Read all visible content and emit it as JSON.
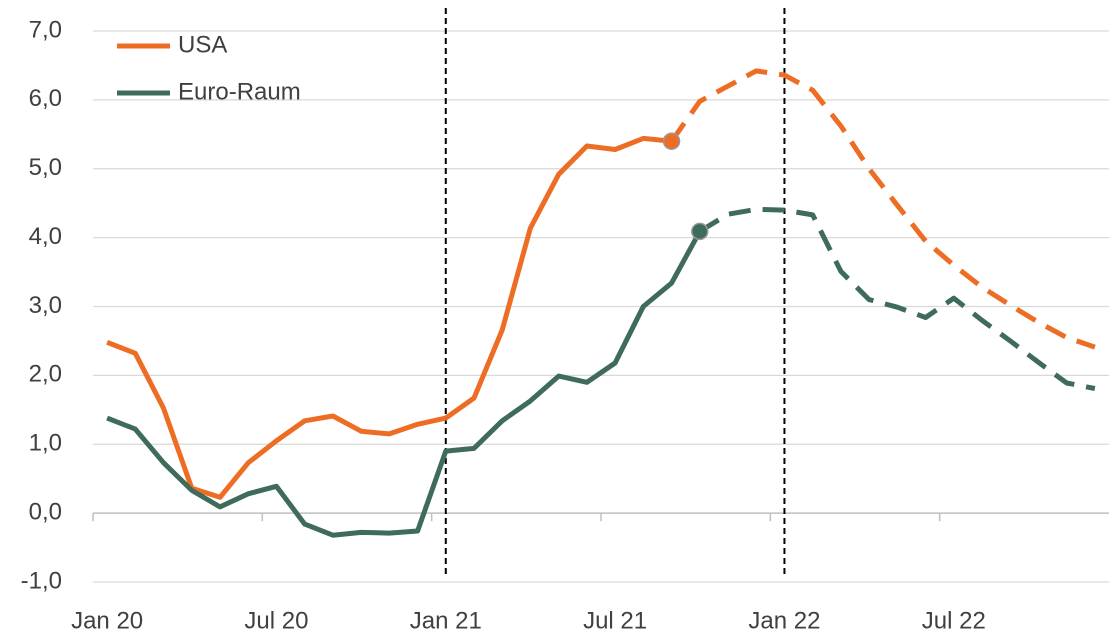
{
  "chart_data": {
    "type": "line",
    "categories": [
      "Jan 20",
      null,
      null,
      null,
      null,
      null,
      "Jul 20",
      null,
      null,
      null,
      null,
      null,
      "Jan 21",
      null,
      null,
      null,
      null,
      null,
      "Jul 21",
      null,
      null,
      null,
      null,
      null,
      "Jan 22",
      null,
      null,
      null,
      null,
      null,
      "Jul 22",
      null,
      null,
      null,
      null,
      null
    ],
    "series": [
      {
        "name": "USA",
        "color": "#ed6d25",
        "dashed_from": 20,
        "values": [
          2.48,
          2.32,
          1.52,
          0.36,
          0.23,
          0.73,
          1.05,
          1.34,
          1.41,
          1.19,
          1.15,
          1.29,
          1.38,
          1.67,
          2.66,
          4.14,
          4.92,
          5.33,
          5.28,
          5.44,
          5.4,
          5.98,
          6.2,
          6.42,
          6.36,
          6.14,
          5.62,
          5.0,
          4.47,
          3.95,
          3.6,
          3.28,
          3.02,
          2.77,
          2.55,
          2.41
        ]
      },
      {
        "name": "Euro-Raum",
        "color": "#3f6b5a",
        "dashed_from": 21,
        "values": [
          1.38,
          1.22,
          0.73,
          0.33,
          0.09,
          0.28,
          0.39,
          -0.16,
          -0.32,
          -0.28,
          -0.29,
          -0.26,
          0.9,
          0.94,
          1.34,
          1.63,
          1.99,
          1.9,
          2.18,
          3.0,
          3.34,
          4.09,
          4.34,
          4.41,
          4.4,
          4.33,
          3.51,
          3.1,
          2.99,
          2.84,
          3.12,
          2.8,
          2.5,
          2.19,
          1.89,
          1.81
        ]
      }
    ],
    "vertical_lines": [
      12,
      24
    ],
    "ylim": [
      -1,
      7
    ],
    "yticks": [
      {
        "value": -1,
        "label": "-1,0"
      },
      {
        "value": 0,
        "label": "0,0"
      },
      {
        "value": 1,
        "label": "1,0"
      },
      {
        "value": 2,
        "label": "2,0"
      },
      {
        "value": 3,
        "label": "3,0"
      },
      {
        "value": 4,
        "label": "4,0"
      },
      {
        "value": 5,
        "label": "5,0"
      },
      {
        "value": 6,
        "label": "6,0"
      },
      {
        "value": 7,
        "label": "7,0"
      }
    ],
    "grid": true,
    "legend": "top-left"
  }
}
